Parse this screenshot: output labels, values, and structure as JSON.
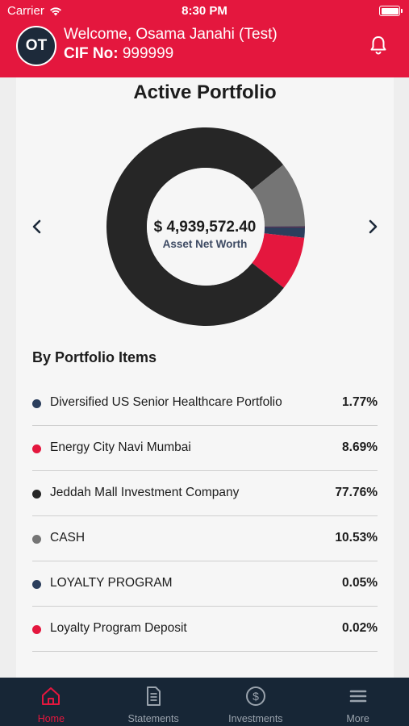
{
  "status_bar": {
    "carrier": "Carrier",
    "time": "8:30 PM"
  },
  "header": {
    "avatar_initials": "OT",
    "welcome": "Welcome, Osama Janahi (Test)",
    "cif_label": "CIF No:",
    "cif_value": "999999",
    "bell_icon": "bell-icon"
  },
  "portfolio": {
    "title": "Active Portfolio",
    "net_worth": "$ 4,939,572.40",
    "net_worth_label": "Asset Net Worth"
  },
  "chart_data": {
    "type": "pie",
    "variant": "donut",
    "categories": [
      "Diversified US Senior Healthcare Portfolio",
      "Energy City Navi Mumbai",
      "Jeddah Mall Investment Company",
      "CASH",
      "LOYALTY PROGRAM",
      "Loyalty Program Deposit"
    ],
    "values": [
      1.77,
      8.69,
      77.76,
      10.53,
      0.05,
      0.02
    ],
    "colors": [
      "#2b3e5c",
      "#e4173e",
      "#262626",
      "#757575",
      "#2b3e5c",
      "#e4173e"
    ],
    "start": "right, clockwise"
  },
  "items_section": {
    "title": "By Portfolio Items",
    "items": [
      {
        "name": "Diversified US Senior Healthcare Portfolio",
        "percent": "1.77%",
        "color": "#2b3e5c"
      },
      {
        "name": "Energy City Navi Mumbai",
        "percent": "8.69%",
        "color": "#e4173e"
      },
      {
        "name": "Jeddah Mall Investment Company",
        "percent": "77.76%",
        "color": "#262626"
      },
      {
        "name": "CASH",
        "percent": "10.53%",
        "color": "#757575"
      },
      {
        "name": "LOYALTY PROGRAM",
        "percent": "0.05%",
        "color": "#2b3e5c"
      },
      {
        "name": "Loyalty Program Deposit",
        "percent": "0.02%",
        "color": "#e4173e"
      }
    ]
  },
  "tabs": [
    {
      "label": "Home",
      "icon": "home-icon",
      "active": true
    },
    {
      "label": "Statements",
      "icon": "document-icon",
      "active": false
    },
    {
      "label": "Investments",
      "icon": "dollar-circle-icon",
      "active": false
    },
    {
      "label": "More",
      "icon": "menu-icon",
      "active": false
    }
  ],
  "colors": {
    "brand_red": "#e4173e",
    "tab_bar": "#172636",
    "inactive_tab": "#9aa3ad"
  }
}
